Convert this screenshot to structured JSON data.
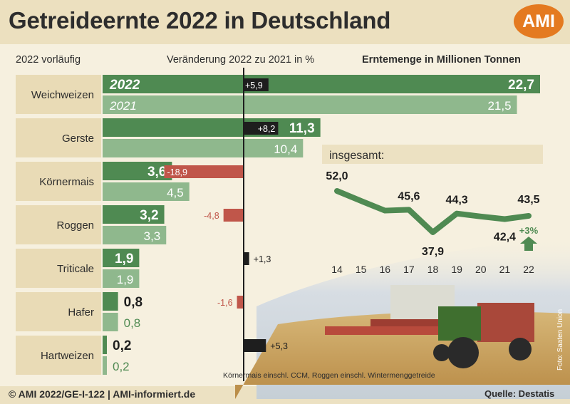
{
  "header": {
    "title": "Getreideernte 2022 in Deutschland",
    "logo": "AMI"
  },
  "subheaders": {
    "left": "2022 vorläufig",
    "middle": "Veränderung 2022 zu 2021 in %",
    "right": "Erntemenge in Millionen Tonnen"
  },
  "colors": {
    "bar_2022": "#4f8a52",
    "bar_2021": "#8fb88d",
    "change_positive": "#1e1e1e",
    "change_negative": "#c0564a",
    "label_panel": "#e9dbb6",
    "line": "#4f8a52"
  },
  "chart_data": [
    {
      "type": "bar",
      "title": "Erntemenge in Millionen Tonnen",
      "categories": [
        "Weichweizen",
        "Gerste",
        "Körnermais",
        "Roggen",
        "Triticale",
        "Hafer",
        "Hartweizen"
      ],
      "series": [
        {
          "name": "2022",
          "values": [
            22.7,
            11.3,
            3.6,
            3.2,
            1.9,
            0.8,
            0.2
          ]
        },
        {
          "name": "2021",
          "values": [
            21.5,
            10.4,
            4.5,
            3.3,
            1.9,
            0.8,
            0.2
          ]
        }
      ],
      "value_labels_2022": [
        "22,7",
        "11,3",
        "3,6",
        "3,2",
        "1,9",
        "0,8",
        "0,2"
      ],
      "value_labels_2021": [
        "21,5",
        "10,4",
        "4,5",
        "3,3",
        "1,9",
        "0,8",
        "0,2"
      ]
    },
    {
      "type": "bar",
      "title": "Veränderung 2022 zu 2021 in %",
      "categories": [
        "Weichweizen",
        "Gerste",
        "Körnermais",
        "Roggen",
        "Triticale",
        "Hafer",
        "Hartweizen"
      ],
      "values": [
        5.9,
        8.2,
        -18.9,
        -4.8,
        1.3,
        -1.6,
        5.3
      ],
      "labels": [
        "+5,9",
        "+8,2",
        "-18,9",
        "-4,8",
        "+1,3",
        "-1,6",
        "+5,3"
      ]
    },
    {
      "type": "line",
      "title": "insgesamt:",
      "x": [
        "14",
        "15",
        "16",
        "17",
        "18",
        "19",
        "20",
        "21",
        "22"
      ],
      "values": [
        52.0,
        48.6,
        45.3,
        45.6,
        37.9,
        44.3,
        43.3,
        42.4,
        43.5
      ],
      "point_labels": [
        {
          "index": 0,
          "text": "52,0"
        },
        {
          "index": 3,
          "text": "45,6"
        },
        {
          "index": 4,
          "text": "37,9"
        },
        {
          "index": 5,
          "text": "44,3"
        },
        {
          "index": 7,
          "text": "42,4"
        },
        {
          "index": 8,
          "text": "43,5"
        }
      ],
      "annotation": "+3%"
    }
  ],
  "note": "Körnermais einschl. CCM, Roggen einschl. Wintermenggetreide",
  "footer": {
    "left": "© AMI 2022/GE-I-122 | AMI-informiert.de",
    "right": "Quelle: Destatis"
  },
  "photo_credit": "Foto: Saaten Union"
}
